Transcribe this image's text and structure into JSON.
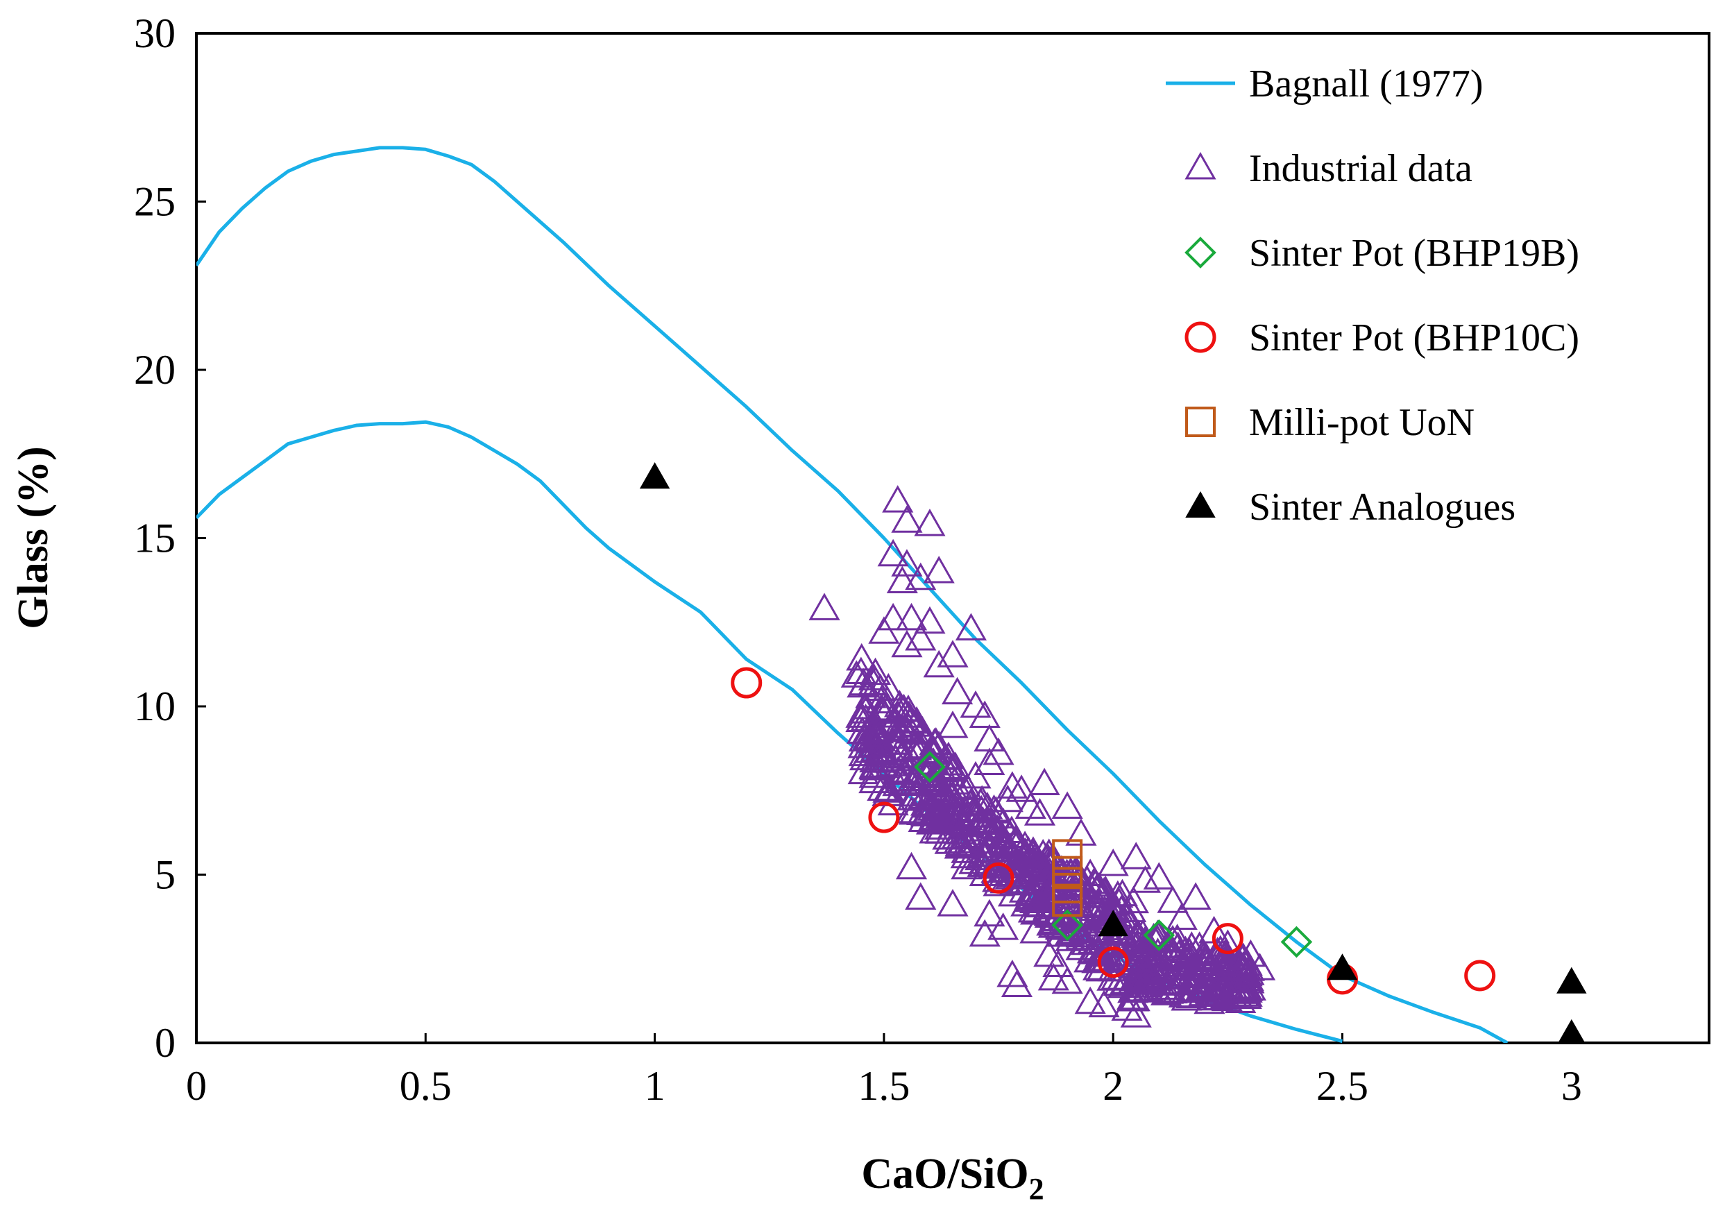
{
  "chart_data": {
    "type": "scatter",
    "title": "",
    "xlabel": "CaO/SiO",
    "xlabel_subscript": "2",
    "ylabel": "Glass (%)",
    "xlim": [
      0,
      3.3
    ],
    "ylim": [
      0,
      30
    ],
    "x_ticks": [
      "0",
      "0.5",
      "1",
      "1.5",
      "2",
      "2.5",
      "3"
    ],
    "x_tick_values": [
      0,
      0.5,
      1,
      1.5,
      2,
      2.5,
      3
    ],
    "y_ticks": [
      "0",
      "5",
      "10",
      "15",
      "20",
      "25",
      "30"
    ],
    "y_tick_values": [
      0,
      5,
      10,
      15,
      20,
      25,
      30
    ],
    "grid": false,
    "legend_position": "top-right",
    "colors": {
      "bagnall": "#1ab0e8",
      "industrial": "#7030a0",
      "bhp19b": "#1aaa3c",
      "bhp10c": "#ee1111",
      "millipot": "#c05a1a",
      "analogues": "#000000"
    },
    "series": [
      {
        "name": "Bagnall (1977)",
        "kind": "line",
        "curves": [
          [
            [
              0,
              23.1
            ],
            [
              0.05,
              24.1
            ],
            [
              0.1,
              24.8
            ],
            [
              0.15,
              25.4
            ],
            [
              0.2,
              25.9
            ],
            [
              0.25,
              26.2
            ],
            [
              0.3,
              26.4
            ],
            [
              0.35,
              26.5
            ],
            [
              0.4,
              26.6
            ],
            [
              0.45,
              26.6
            ],
            [
              0.5,
              26.55
            ],
            [
              0.55,
              26.35
            ],
            [
              0.6,
              26.1
            ],
            [
              0.65,
              25.6
            ],
            [
              0.7,
              25.0
            ],
            [
              0.8,
              23.8
            ],
            [
              0.9,
              22.5
            ],
            [
              1.0,
              21.3
            ],
            [
              1.1,
              20.1
            ],
            [
              1.2,
              18.9
            ],
            [
              1.3,
              17.6
            ],
            [
              1.4,
              16.4
            ],
            [
              1.5,
              15.0
            ],
            [
              1.6,
              13.5
            ],
            [
              1.7,
              12.0
            ],
            [
              1.8,
              10.7
            ],
            [
              1.9,
              9.3
            ],
            [
              2.0,
              8.0
            ],
            [
              2.1,
              6.6
            ],
            [
              2.2,
              5.3
            ],
            [
              2.3,
              4.1
            ],
            [
              2.4,
              3.0
            ],
            [
              2.5,
              2.0
            ],
            [
              2.6,
              1.4
            ],
            [
              2.7,
              0.9
            ],
            [
              2.8,
              0.45
            ],
            [
              2.86,
              0.0
            ]
          ],
          [
            [
              0,
              15.6
            ],
            [
              0.05,
              16.3
            ],
            [
              0.1,
              16.8
            ],
            [
              0.15,
              17.3
            ],
            [
              0.2,
              17.8
            ],
            [
              0.25,
              18.0
            ],
            [
              0.3,
              18.2
            ],
            [
              0.35,
              18.35
            ],
            [
              0.4,
              18.4
            ],
            [
              0.45,
              18.4
            ],
            [
              0.5,
              18.45
            ],
            [
              0.55,
              18.3
            ],
            [
              0.6,
              18.0
            ],
            [
              0.65,
              17.6
            ],
            [
              0.7,
              17.2
            ],
            [
              0.75,
              16.7
            ],
            [
              0.8,
              16.0
            ],
            [
              0.85,
              15.3
            ],
            [
              0.9,
              14.7
            ],
            [
              1.0,
              13.7
            ],
            [
              1.1,
              12.8
            ],
            [
              1.2,
              11.4
            ],
            [
              1.3,
              10.5
            ],
            [
              1.4,
              9.2
            ],
            [
              1.5,
              8.0
            ],
            [
              1.6,
              6.8
            ],
            [
              1.7,
              5.7
            ],
            [
              1.8,
              4.6
            ],
            [
              1.9,
              3.5
            ],
            [
              2.0,
              2.6
            ],
            [
              2.1,
              1.9
            ],
            [
              2.2,
              1.3
            ],
            [
              2.3,
              0.8
            ],
            [
              2.4,
              0.4
            ],
            [
              2.5,
              0.05
            ]
          ]
        ]
      },
      {
        "name": "Industrial data",
        "kind": "open-triangle",
        "core_clusters": [
          {
            "x_range": [
              1.45,
              1.8
            ],
            "y_top": [
              11.5,
              6.0
            ],
            "y_bottom": [
              8.0,
              4.2
            ],
            "count": 260
          },
          {
            "x_range": [
              1.8,
              2.05
            ],
            "y_top": [
              6.0,
              4.2
            ],
            "y_bottom": [
              4.2,
              1.2
            ],
            "count": 180
          },
          {
            "x_range": [
              2.05,
              2.3
            ],
            "y_top": [
              3.5,
              2.5
            ],
            "y_bottom": [
              1.5,
              1.2
            ],
            "count": 160
          }
        ],
        "points": [
          [
            1.53,
            16.1
          ],
          [
            1.55,
            15.5
          ],
          [
            1.6,
            15.4
          ],
          [
            1.52,
            14.5
          ],
          [
            1.55,
            14.2
          ],
          [
            1.62,
            14.0
          ],
          [
            1.54,
            13.7
          ],
          [
            1.58,
            13.8
          ],
          [
            1.37,
            12.9
          ],
          [
            1.52,
            12.6
          ],
          [
            1.56,
            12.6
          ],
          [
            1.6,
            12.5
          ],
          [
            1.69,
            12.3
          ],
          [
            1.5,
            12.2
          ],
          [
            1.58,
            12.0
          ],
          [
            1.65,
            11.5
          ],
          [
            1.45,
            11.0
          ],
          [
            1.44,
            10.9
          ],
          [
            1.55,
            11.8
          ],
          [
            1.62,
            11.2
          ],
          [
            1.66,
            10.4
          ],
          [
            1.7,
            10.0
          ],
          [
            1.72,
            9.7
          ],
          [
            1.48,
            9.3
          ],
          [
            1.65,
            9.4
          ],
          [
            1.73,
            9.0
          ],
          [
            1.75,
            8.6
          ],
          [
            1.73,
            8.3
          ],
          [
            1.78,
            7.6
          ],
          [
            1.8,
            7.5
          ],
          [
            1.85,
            7.7
          ],
          [
            1.77,
            7.2
          ],
          [
            1.82,
            7.0
          ],
          [
            1.84,
            6.8
          ],
          [
            1.9,
            7.0
          ],
          [
            1.93,
            6.2
          ],
          [
            1.62,
            8.8
          ],
          [
            1.7,
            7.9
          ],
          [
            1.52,
            7.1
          ],
          [
            1.56,
            5.2
          ],
          [
            1.58,
            4.3
          ],
          [
            1.65,
            4.1
          ],
          [
            1.68,
            5.2
          ],
          [
            1.72,
            5.0
          ],
          [
            1.75,
            4.7
          ],
          [
            1.78,
            5.5
          ],
          [
            1.86,
            5.6
          ],
          [
            1.88,
            4.8
          ],
          [
            1.73,
            3.8
          ],
          [
            1.76,
            3.4
          ],
          [
            1.72,
            3.2
          ],
          [
            1.78,
            2.0
          ],
          [
            1.79,
            1.7
          ],
          [
            1.87,
            1.9
          ],
          [
            1.9,
            1.8
          ],
          [
            1.95,
            1.2
          ],
          [
            1.98,
            1.1
          ],
          [
            2.03,
            1.0
          ],
          [
            2.05,
            0.8
          ],
          [
            2.05,
            5.5
          ],
          [
            2.07,
            4.8
          ],
          [
            2.1,
            4.9
          ],
          [
            2.13,
            4.2
          ],
          [
            2.15,
            3.7
          ],
          [
            2.18,
            4.3
          ],
          [
            2.22,
            3.3
          ],
          [
            2.25,
            2.9
          ],
          [
            2.28,
            2.5
          ],
          [
            2.3,
            2.6
          ],
          [
            2.32,
            2.2
          ],
          [
            2.3,
            1.6
          ],
          [
            2.26,
            1.4
          ],
          [
            2.21,
            1.2
          ],
          [
            2.12,
            1.5
          ],
          [
            2.16,
            1.3
          ],
          [
            2.0,
            5.3
          ],
          [
            1.95,
            5.0
          ],
          [
            1.92,
            4.9
          ],
          [
            2.02,
            4.4
          ],
          [
            1.97,
            3.9
          ],
          [
            1.81,
            4.1
          ],
          [
            1.83,
            3.3
          ],
          [
            1.86,
            2.6
          ],
          [
            1.88,
            2.3
          ],
          [
            1.93,
            2.8
          ],
          [
            2.08,
            2.6
          ],
          [
            2.1,
            2.1
          ]
        ]
      },
      {
        "name": "Sinter Pot (BHP19B)",
        "kind": "open-diamond",
        "points": [
          [
            1.6,
            8.2
          ],
          [
            1.9,
            3.5
          ],
          [
            2.1,
            3.2
          ],
          [
            2.4,
            3.0
          ]
        ]
      },
      {
        "name": "Sinter Pot (BHP10C)",
        "kind": "open-circle",
        "points": [
          [
            1.2,
            10.7
          ],
          [
            1.5,
            6.7
          ],
          [
            1.75,
            4.9
          ],
          [
            2.0,
            2.4
          ],
          [
            2.25,
            3.1
          ],
          [
            2.5,
            1.9
          ],
          [
            2.8,
            2.0
          ]
        ]
      },
      {
        "name": "Milli-pot UoN",
        "kind": "open-square",
        "points": [
          [
            1.9,
            5.6
          ],
          [
            1.9,
            5.1
          ],
          [
            1.9,
            4.6
          ],
          [
            1.9,
            4.2
          ]
        ]
      },
      {
        "name": "Sinter Analogues",
        "kind": "filled-triangle",
        "points": [
          [
            1.0,
            16.8
          ],
          [
            2.0,
            3.5
          ],
          [
            2.5,
            2.2
          ],
          [
            3.0,
            1.8
          ],
          [
            3.0,
            0.25
          ]
        ]
      }
    ]
  }
}
